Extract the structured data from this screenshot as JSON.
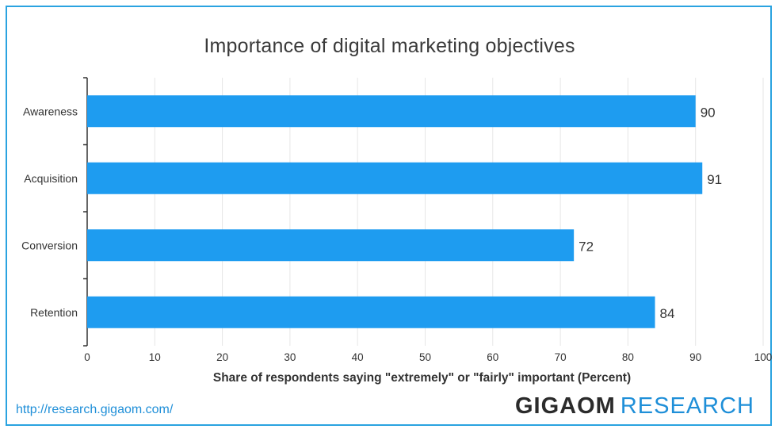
{
  "title": "Importance of digital marketing objectives",
  "footer": {
    "url": "http://research.gigaom.com/",
    "brand_strong": "GIGAOM",
    "brand_light": "RESEARCH"
  },
  "colors": {
    "bar": "#1e9cf0",
    "border": "#2aa3e0",
    "brand_blue": "#1f8fd8"
  },
  "chart_data": {
    "type": "bar",
    "orientation": "horizontal",
    "title": "Importance of digital marketing objectives",
    "categories": [
      "Awareness",
      "Acquisition",
      "Conversion",
      "Retention"
    ],
    "values": [
      90,
      91,
      72,
      84
    ],
    "data_labels": [
      "90",
      "91",
      "72",
      "84"
    ],
    "xlabel": "Share of respondents saying \"extremely\" or \"fairly\" important (Percent)",
    "ylabel": "",
    "xlim": [
      0,
      100
    ],
    "xticks": [
      0,
      10,
      20,
      30,
      40,
      50,
      60,
      70,
      80,
      90,
      100
    ],
    "grid": "vertical",
    "legend": "none"
  }
}
